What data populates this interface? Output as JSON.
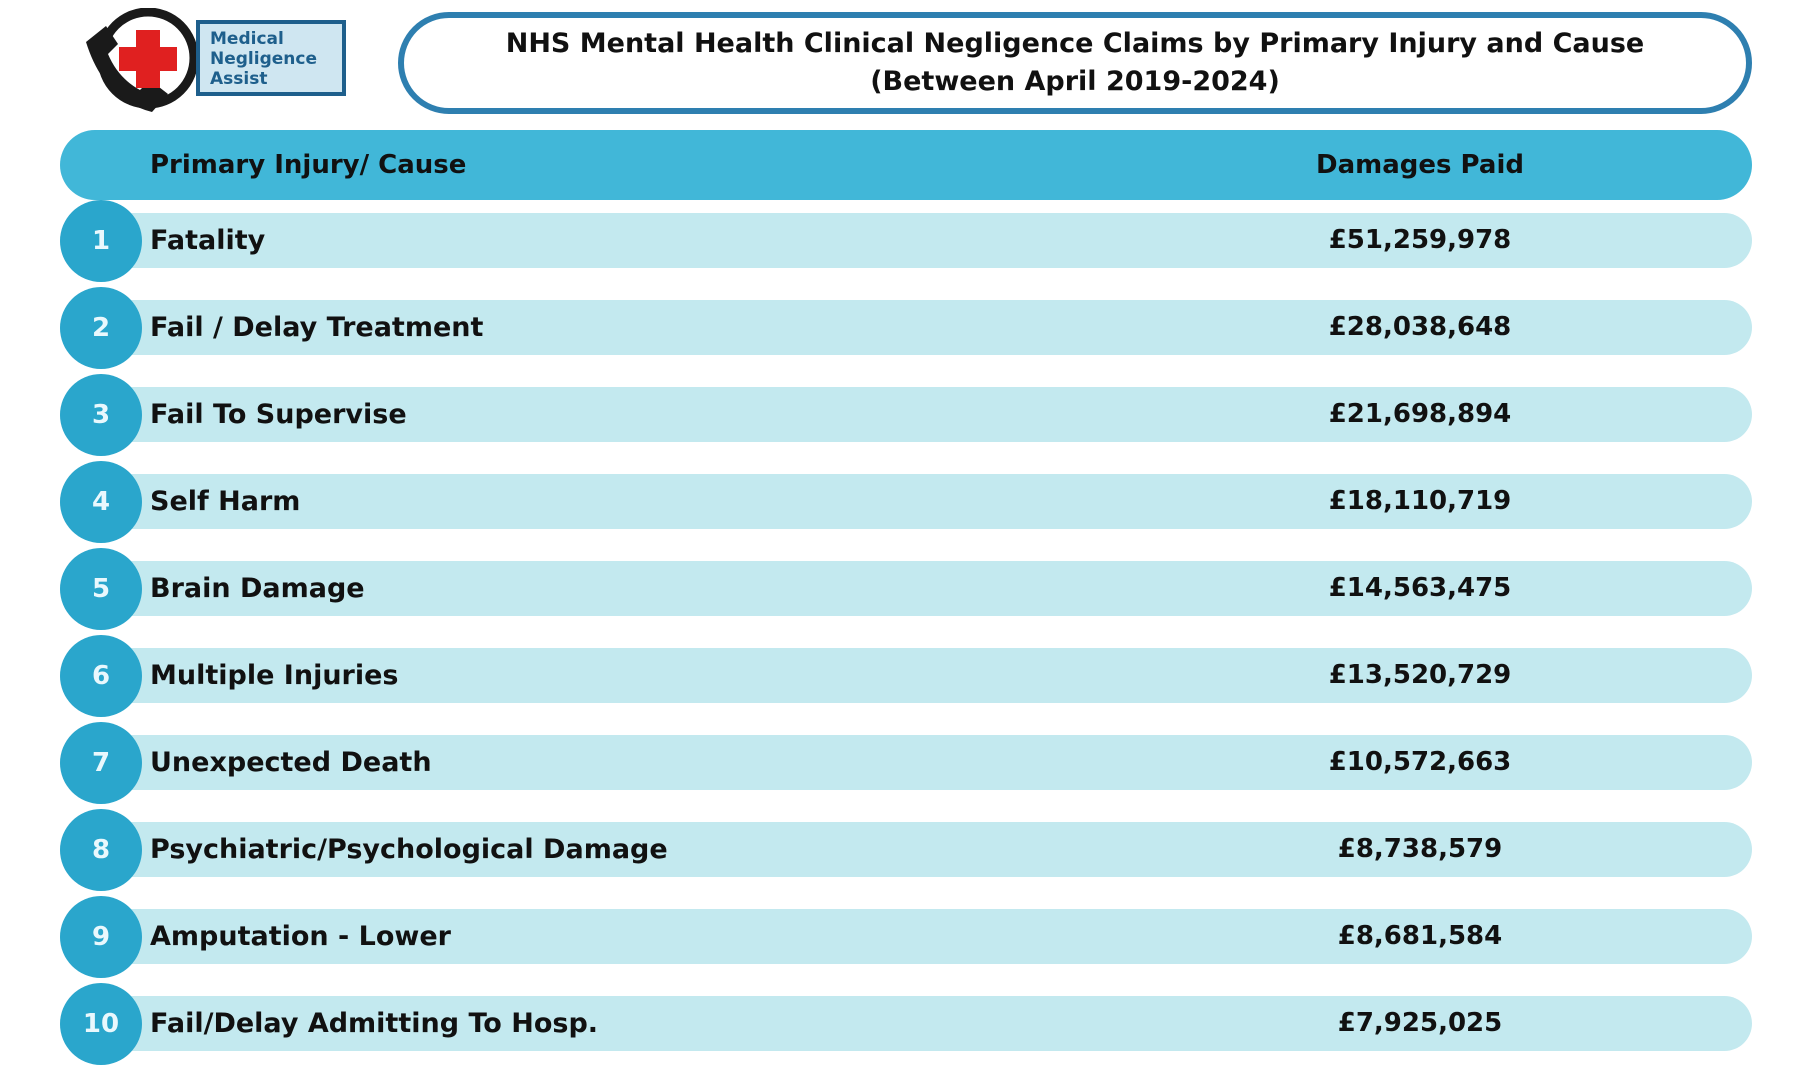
{
  "logo": {
    "line1": "Medical",
    "line2": "Negligence",
    "line3": "Assist",
    "icons": [
      "phone-icon",
      "medical-cross-icon"
    ],
    "colors": {
      "cross": "#e02020",
      "phone": "#1a1a1a",
      "box": "#cfe6f1",
      "border": "#1e5f8c"
    }
  },
  "title": {
    "line1": "NHS Mental Health Clinical Negligence Claims by Primary Injury and Cause",
    "line2": "(Between April 2019-2024)"
  },
  "colors": {
    "header": "#41b7d8",
    "row": "#c3e9ef",
    "rank_circle": "#2aa6cc",
    "title_border": "#2e7fb0"
  },
  "chart_data": {
    "type": "table",
    "columns": [
      "Primary Injury/ Cause",
      "Damages Paid"
    ],
    "rows": [
      {
        "rank": "1",
        "cause": "Fatality",
        "damages": "£51,259,978"
      },
      {
        "rank": "2",
        "cause": "Fail / Delay Treatment",
        "damages": "£28,038,648"
      },
      {
        "rank": "3",
        "cause": "Fail To Supervise",
        "damages": "£21,698,894"
      },
      {
        "rank": "4",
        "cause": "Self Harm",
        "damages": "£18,110,719"
      },
      {
        "rank": "5",
        "cause": "Brain Damage",
        "damages": "£14,563,475"
      },
      {
        "rank": "6",
        "cause": "Multiple Injuries",
        "damages": "£13,520,729"
      },
      {
        "rank": "7",
        "cause": "Unexpected Death",
        "damages": "£10,572,663"
      },
      {
        "rank": "8",
        "cause": "Psychiatric/Psychological Damage",
        "damages": "£8,738,579"
      },
      {
        "rank": "9",
        "cause": "Amputation - Lower",
        "damages": "£8,681,584"
      },
      {
        "rank": "10",
        "cause": "Fail/Delay Admitting To Hosp.",
        "damages": "£7,925,025"
      }
    ]
  }
}
